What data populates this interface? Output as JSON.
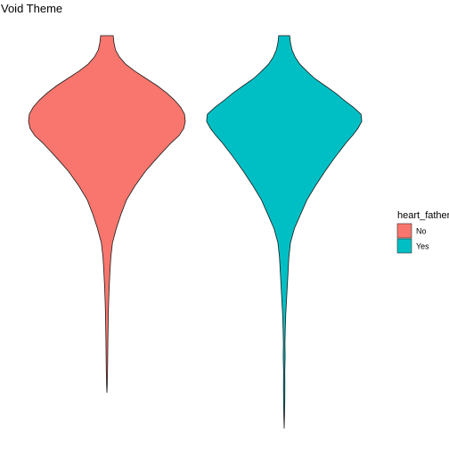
{
  "chart_data": {
    "type": "violin",
    "title": "Void Theme",
    "xlabel": "",
    "ylabel": "",
    "grid": false,
    "legend": {
      "title": "heart_father",
      "placement": "right",
      "entries": [
        {
          "label": "No",
          "color": "#F8766D"
        },
        {
          "label": "Yes",
          "color": "#00BFC4"
        }
      ]
    },
    "series": [
      {
        "category": "No",
        "color": "#F8766D",
        "y_range": [
          0.0,
          1.0
        ],
        "density_profile": [
          [
            0.0,
            0.0
          ],
          [
            0.02,
            0.004
          ],
          [
            0.06,
            0.008
          ],
          [
            0.1,
            0.01
          ],
          [
            0.14,
            0.012
          ],
          [
            0.18,
            0.015
          ],
          [
            0.22,
            0.018
          ],
          [
            0.26,
            0.023
          ],
          [
            0.3,
            0.03
          ],
          [
            0.34,
            0.039
          ],
          [
            0.38,
            0.05
          ],
          [
            0.42,
            0.071
          ],
          [
            0.46,
            0.12
          ],
          [
            0.5,
            0.18
          ],
          [
            0.54,
            0.25
          ],
          [
            0.58,
            0.36
          ],
          [
            0.62,
            0.49
          ],
          [
            0.66,
            0.65
          ],
          [
            0.7,
            0.82
          ],
          [
            0.72,
            0.92
          ],
          [
            0.74,
            0.98
          ],
          [
            0.76,
            1.0
          ],
          [
            0.78,
            0.99
          ],
          [
            0.8,
            0.94
          ],
          [
            0.82,
            0.86
          ],
          [
            0.84,
            0.76
          ],
          [
            0.86,
            0.64
          ],
          [
            0.88,
            0.5
          ],
          [
            0.9,
            0.36
          ],
          [
            0.92,
            0.24
          ],
          [
            0.94,
            0.16
          ],
          [
            0.96,
            0.11
          ],
          [
            0.98,
            0.09
          ],
          [
            1.0,
            0.08
          ]
        ]
      },
      {
        "category": "Yes",
        "color": "#00BFC4",
        "y_range": [
          -0.1,
          1.0
        ],
        "density_profile": [
          [
            -0.1,
            0.0
          ],
          [
            -0.06,
            0.005
          ],
          [
            -0.02,
            0.008
          ],
          [
            0.02,
            0.009
          ],
          [
            0.06,
            0.008
          ],
          [
            0.1,
            0.012
          ],
          [
            0.14,
            0.01
          ],
          [
            0.18,
            0.014
          ],
          [
            0.22,
            0.02
          ],
          [
            0.26,
            0.03
          ],
          [
            0.3,
            0.04
          ],
          [
            0.34,
            0.05
          ],
          [
            0.38,
            0.06
          ],
          [
            0.42,
            0.08
          ],
          [
            0.46,
            0.13
          ],
          [
            0.5,
            0.21
          ],
          [
            0.54,
            0.29
          ],
          [
            0.58,
            0.4
          ],
          [
            0.62,
            0.52
          ],
          [
            0.66,
            0.65
          ],
          [
            0.7,
            0.79
          ],
          [
            0.72,
            0.87
          ],
          [
            0.74,
            0.94
          ],
          [
            0.76,
            0.99
          ],
          [
            0.78,
            0.98
          ],
          [
            0.8,
            0.88
          ],
          [
            0.82,
            0.76
          ],
          [
            0.84,
            0.65
          ],
          [
            0.86,
            0.52
          ],
          [
            0.88,
            0.39
          ],
          [
            0.9,
            0.29
          ],
          [
            0.92,
            0.2
          ],
          [
            0.94,
            0.14
          ],
          [
            0.96,
            0.1
          ],
          [
            0.98,
            0.08
          ],
          [
            1.0,
            0.07
          ]
        ]
      }
    ],
    "y_axis_range": [
      -0.1,
      1.0
    ]
  }
}
